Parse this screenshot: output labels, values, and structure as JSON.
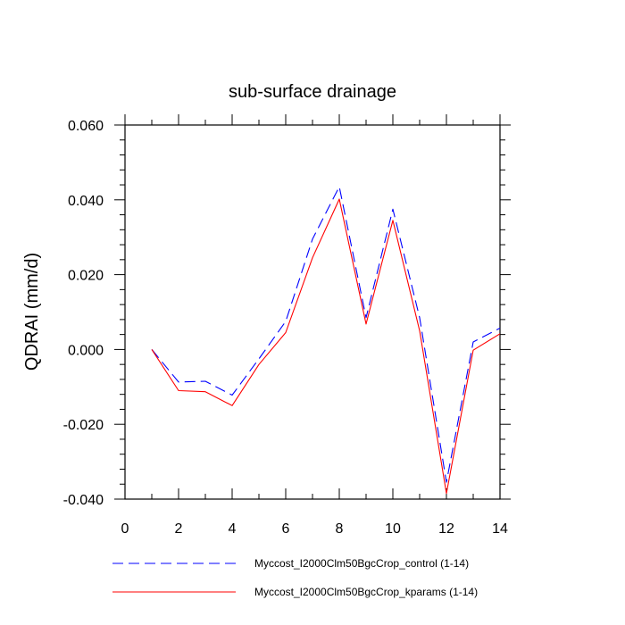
{
  "chart_data": {
    "type": "line",
    "title": "sub-surface drainage",
    "xlabel": "",
    "ylabel": "QDRAI  (mm/d)",
    "xlim": [
      0,
      14
    ],
    "ylim": [
      -0.04,
      0.06
    ],
    "x_ticks": [
      0,
      2,
      4,
      6,
      8,
      10,
      12,
      14
    ],
    "x_tick_labels": [
      "0",
      "2",
      "4",
      "6",
      "8",
      "10",
      "12",
      "14"
    ],
    "y_ticks": [
      -0.04,
      -0.02,
      0.0,
      0.02,
      0.04,
      0.06
    ],
    "y_tick_labels": [
      "-0.040",
      "-0.020",
      "0.000",
      "0.020",
      "0.040",
      "0.060"
    ],
    "grid": false,
    "legend_position": "bottom",
    "x": [
      1,
      2,
      3,
      4,
      5,
      6,
      7,
      8,
      9,
      10,
      11,
      12,
      13,
      14
    ],
    "series": [
      {
        "name": "Myccost_I2000Clm50BgcCrop_control (1-14)",
        "color": "#0000ff",
        "dash": "dashed",
        "values": [
          0.0,
          -0.0087,
          -0.0085,
          -0.0122,
          -0.0025,
          0.0075,
          0.0295,
          0.0435,
          0.0085,
          0.0375,
          0.0085,
          -0.0355,
          0.002,
          0.0057
        ]
      },
      {
        "name": "Myccost_I2000Clm50BgcCrop_kparams (1-14)",
        "color": "#ff0000",
        "dash": "solid",
        "values": [
          0.0,
          -0.011,
          -0.0113,
          -0.015,
          -0.004,
          0.0045,
          0.0245,
          0.0402,
          0.0068,
          0.0345,
          0.005,
          -0.0385,
          -0.0002,
          0.0042
        ]
      }
    ]
  }
}
